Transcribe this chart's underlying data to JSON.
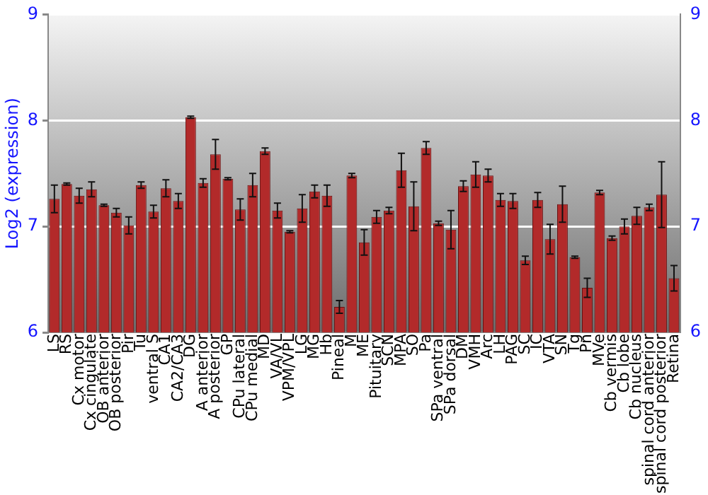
{
  "chart_data": {
    "type": "bar",
    "ylabel": "Log2 (expression)",
    "categories": [
      "LS",
      "RS",
      "Cx motor",
      "Cx cingulate",
      "OB anterior",
      "OB posterior",
      "Pir",
      "Tu",
      "ventral S",
      "CA1",
      "CA2/CA3",
      "DG",
      "A anterior",
      "A posterior",
      "GP",
      "CPu lateral",
      "CPu medial",
      "MD",
      "VA/VL",
      "VPM/VPL",
      "LG",
      "MG",
      "Hb",
      "Pineal",
      "M",
      "ME",
      "Pituitary",
      "SCN",
      "MPA",
      "SO",
      "Pa",
      "SPa ventral",
      "SPa dorsal",
      "DM",
      "VMH",
      "Arc",
      "LH",
      "PAG",
      "SC",
      "IC",
      "VTA",
      "SN",
      "Tg",
      "Pn",
      "MVe",
      "Cb vermis",
      "Cb lobe",
      "Cb nucleus",
      "spinal cord anterior",
      "spinal cord posterior",
      "Retina"
    ],
    "values": [
      7.26,
      7.4,
      7.29,
      7.35,
      7.2,
      7.13,
      7.01,
      7.39,
      7.14,
      7.36,
      7.24,
      8.03,
      7.41,
      7.68,
      7.45,
      7.16,
      7.39,
      7.71,
      7.15,
      6.95,
      7.17,
      7.33,
      7.29,
      6.24,
      7.48,
      6.85,
      7.09,
      7.15,
      7.53,
      7.19,
      7.74,
      7.03,
      6.97,
      7.38,
      7.49,
      7.48,
      7.25,
      7.24,
      6.68,
      7.25,
      6.88,
      7.21,
      6.71,
      6.42,
      7.32,
      6.89,
      7.0,
      7.1,
      7.18,
      7.3,
      6.51
    ],
    "errors": [
      0.13,
      0.01,
      0.07,
      0.07,
      0.01,
      0.04,
      0.08,
      0.03,
      0.06,
      0.08,
      0.07,
      0.01,
      0.04,
      0.14,
      0.01,
      0.1,
      0.11,
      0.03,
      0.07,
      0.01,
      0.13,
      0.06,
      0.1,
      0.06,
      0.02,
      0.12,
      0.06,
      0.03,
      0.16,
      0.23,
      0.06,
      0.02,
      0.18,
      0.05,
      0.12,
      0.06,
      0.06,
      0.07,
      0.04,
      0.07,
      0.14,
      0.17,
      0.01,
      0.09,
      0.02,
      0.02,
      0.07,
      0.08,
      0.03,
      0.31,
      0.12
    ],
    "color": "#b22a2a",
    "ylim": [
      6,
      9
    ],
    "yticks": [
      6,
      7,
      8,
      9
    ],
    "y2lim": [
      6,
      9
    ],
    "y2ticks": [
      6,
      7,
      8,
      9
    ],
    "grid": "y",
    "legend": false
  }
}
